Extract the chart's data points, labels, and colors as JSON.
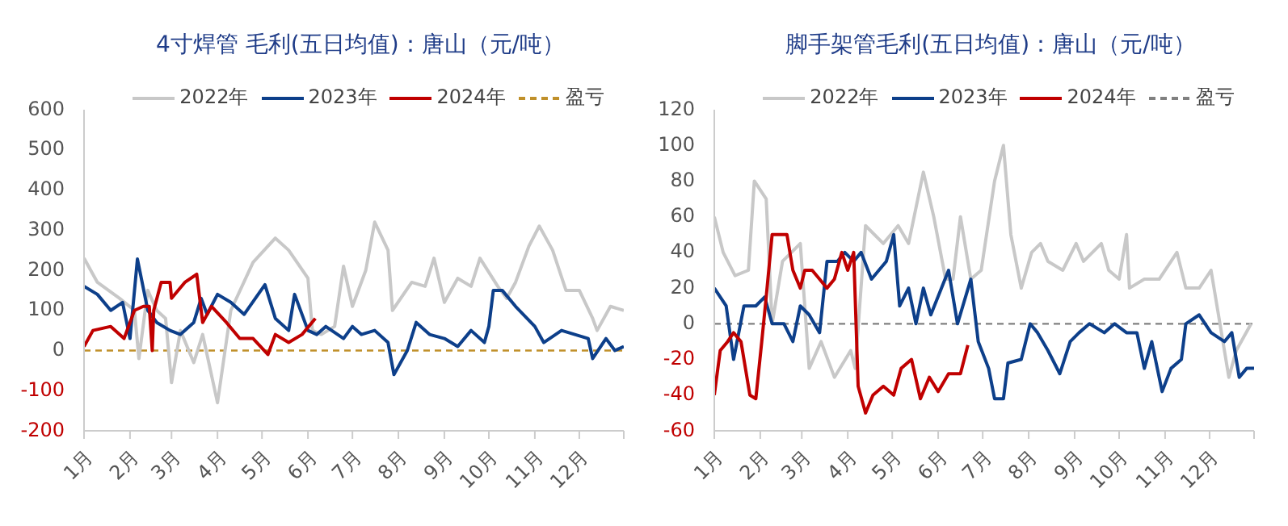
{
  "chart_data": [
    {
      "type": "line",
      "title": "4寸焊管 毛利(五日均值)：唐山（元/吨）",
      "legend": "top",
      "xlim": [
        "--01-01",
        "--12-31"
      ],
      "xticks": [
        {
          "value": "--01-01",
          "label": "1月"
        },
        {
          "value": "--02-01",
          "label": "2月"
        },
        {
          "value": "--03-01",
          "label": "3月"
        },
        {
          "value": "--04-01",
          "label": "4月"
        },
        {
          "value": "--05-01",
          "label": "5月"
        },
        {
          "value": "--06-01",
          "label": "6月"
        },
        {
          "value": "--07-01",
          "label": "7月"
        },
        {
          "value": "--08-01",
          "label": "8月"
        },
        {
          "value": "--09-01",
          "label": "9月"
        },
        {
          "value": "--10-01",
          "label": "10月"
        },
        {
          "value": "--11-01",
          "label": "11月"
        },
        {
          "value": "--12-01",
          "label": "12月"
        },
        {
          "value": "--12-31",
          "label": null
        }
      ],
      "ylim": [
        -200,
        600
      ],
      "yticks": [
        -200,
        -100,
        0,
        100,
        200,
        300,
        400,
        500,
        600
      ],
      "ref_lines": [
        {
          "axis": "y",
          "value": 0,
          "label": "盈亏",
          "color": "#c0902a",
          "line_style": "dashed"
        }
      ],
      "series": [
        {
          "name": "2022年",
          "color": "#c8c8c8",
          "x": [
            "--01-01",
            "--01-10",
            "--01-25",
            "--02-04",
            "--02-07",
            "--02-13",
            "--02-19",
            "--02-25",
            "--03-01",
            "--03-07",
            "--03-16",
            "--03-22",
            "--04-01",
            "--04-10",
            "--04-25",
            "--05-10",
            "--05-19",
            "--06-01",
            "--06-04",
            "--06-10",
            "--06-19",
            "--06-25",
            "--07-01",
            "--07-10",
            "--07-16",
            "--07-25",
            "--07-28",
            "--08-10",
            "--08-19",
            "--08-25",
            "--09-01",
            "--09-10",
            "--09-19",
            "--09-25",
            "--10-07",
            "--10-13",
            "--10-19",
            "--10-28",
            "--11-04",
            "--11-13",
            "--11-22",
            "--12-01",
            "--12-10",
            "--12-13",
            "--12-22",
            "--12-31"
          ],
          "values": [
            230,
            170,
            130,
            100,
            -20,
            150,
            100,
            80,
            -80,
            50,
            -30,
            40,
            -130,
            100,
            220,
            280,
            250,
            180,
            50,
            40,
            60,
            210,
            110,
            200,
            320,
            250,
            100,
            170,
            160,
            230,
            120,
            180,
            160,
            230,
            160,
            130,
            170,
            260,
            310,
            250,
            150,
            150,
            80,
            50,
            110,
            100
          ]
        },
        {
          "name": "2023年",
          "color": "#0d3f8a",
          "x": [
            "--01-01",
            "--01-10",
            "--01-19",
            "--01-27",
            "--02-01",
            "--02-06",
            "--02-13",
            "--02-19",
            "--02-28",
            "--03-07",
            "--03-16",
            "--03-21",
            "--03-25",
            "--04-01",
            "--04-10",
            "--04-19",
            "--05-03",
            "--05-10",
            "--05-19",
            "--05-23",
            "--06-01",
            "--06-07",
            "--06-13",
            "--06-25",
            "--07-01",
            "--07-07",
            "--07-16",
            "--07-25",
            "--07-29",
            "--08-07",
            "--08-13",
            "--08-22",
            "--09-01",
            "--09-10",
            "--09-19",
            "--09-28",
            "--10-01",
            "--10-04",
            "--10-10",
            "--10-19",
            "--11-01",
            "--11-07",
            "--11-19",
            "--11-28",
            "--12-07",
            "--12-10",
            "--12-19",
            "--12-25",
            "--12-31"
          ],
          "values": [
            160,
            140,
            100,
            120,
            30,
            228,
            100,
            70,
            50,
            40,
            70,
            130,
            90,
            140,
            120,
            90,
            164,
            80,
            50,
            140,
            50,
            40,
            60,
            30,
            60,
            40,
            50,
            20,
            -60,
            0,
            70,
            40,
            30,
            10,
            50,
            20,
            60,
            150,
            150,
            110,
            60,
            20,
            50,
            40,
            30,
            -20,
            30,
            0,
            10
          ]
        },
        {
          "name": "2024年",
          "color": "#c00000",
          "x": [
            "--01-01",
            "--01-07",
            "--01-19",
            "--01-28",
            "--02-04",
            "--02-10",
            "--02-14",
            "--02-16",
            "--02-17",
            "--02-22",
            "--02-28",
            "--03-01",
            "--03-10",
            "--03-18",
            "--03-22",
            "--03-28",
            "--04-07",
            "--04-16",
            "--04-25",
            "--05-05",
            "--05-10",
            "--05-19",
            "--05-28",
            "--06-06"
          ],
          "values": [
            10,
            50,
            60,
            30,
            100,
            110,
            110,
            0,
            100,
            170,
            170,
            130,
            170,
            190,
            70,
            110,
            70,
            30,
            30,
            -10,
            40,
            20,
            40,
            80
          ]
        }
      ]
    },
    {
      "type": "line",
      "title": "脚手架管毛利(五日均值)：唐山（元/吨）",
      "legend": "top",
      "xlim": [
        "--01-01",
        "--12-31"
      ],
      "xticks": [
        {
          "value": "--01-01",
          "label": "1月"
        },
        {
          "value": "--02-01",
          "label": "2月"
        },
        {
          "value": "--03-01",
          "label": "3月"
        },
        {
          "value": "--04-01",
          "label": "4月"
        },
        {
          "value": "--05-01",
          "label": "5月"
        },
        {
          "value": "--06-01",
          "label": "6月"
        },
        {
          "value": "--07-01",
          "label": "7月"
        },
        {
          "value": "--08-01",
          "label": "8月"
        },
        {
          "value": "--09-01",
          "label": "9月"
        },
        {
          "value": "--10-01",
          "label": "10月"
        },
        {
          "value": "--11-01",
          "label": "11月"
        },
        {
          "value": "--12-01",
          "label": "12月"
        },
        {
          "value": "--12-31",
          "label": null
        }
      ],
      "ylim": [
        -60,
        120
      ],
      "yticks": [
        -60,
        -40,
        -20,
        0,
        20,
        40,
        60,
        80,
        100,
        120
      ],
      "ref_lines": [
        {
          "axis": "y",
          "value": 0,
          "label": "盈亏",
          "color": "#808080",
          "line_style": "dashed"
        }
      ],
      "series": [
        {
          "name": "2022年",
          "color": "#c8c8c8",
          "x": [
            "--01-01",
            "--01-07",
            "--01-15",
            "--01-24",
            "--01-28",
            "--02-05",
            "--02-09",
            "--02-16",
            "--02-28",
            "--03-06",
            "--03-14",
            "--03-23",
            "--04-03",
            "--04-06",
            "--04-13",
            "--04-25",
            "--05-05",
            "--05-12",
            "--05-22",
            "--05-29",
            "--06-06",
            "--06-11",
            "--06-16",
            "--06-23",
            "--06-30",
            "--07-09",
            "--07-15",
            "--07-20",
            "--07-27",
            "--08-03",
            "--08-09",
            "--08-14",
            "--08-24",
            "--09-02",
            "--09-07",
            "--09-19",
            "--09-24",
            "--10-01",
            "--10-06",
            "--10-08",
            "--10-18",
            "--10-28",
            "--11-09",
            "--11-15",
            "--11-24",
            "--12-02",
            "--12-07",
            "--12-14",
            "--12-19",
            "--12-29"
          ],
          "values": [
            60,
            40,
            27,
            30,
            80,
            70,
            0,
            35,
            45,
            -25,
            -10,
            -30,
            -15,
            -25,
            55,
            45,
            55,
            45,
            85,
            60,
            25,
            25,
            60,
            25,
            30,
            80,
            100,
            50,
            20,
            40,
            45,
            35,
            30,
            45,
            35,
            45,
            30,
            25,
            50,
            20,
            25,
            25,
            40,
            20,
            20,
            30,
            5,
            -30,
            -15,
            0
          ]
        },
        {
          "name": "2023年",
          "color": "#0d3f8a",
          "x": [
            "--01-01",
            "--01-09",
            "--01-14",
            "--01-21",
            "--01-29",
            "--02-04",
            "--02-09",
            "--02-17",
            "--02-23",
            "--02-28",
            "--03-06",
            "--03-13",
            "--03-18",
            "--03-25",
            "--03-30",
            "--04-05",
            "--04-10",
            "--04-17",
            "--04-27",
            "--05-02",
            "--05-06",
            "--05-12",
            "--05-17",
            "--05-22",
            "--05-27",
            "--06-08",
            "--06-14",
            "--06-23",
            "--06-28",
            "--07-05",
            "--07-09",
            "--07-15",
            "--07-18",
            "--07-27",
            "--08-02",
            "--08-07",
            "--08-14",
            "--08-22",
            "--08-29",
            "--09-04",
            "--09-11",
            "--09-21",
            "--09-28",
            "--10-06",
            "--10-13",
            "--10-18",
            "--10-23",
            "--10-30",
            "--11-05",
            "--11-12",
            "--11-15",
            "--11-24",
            "--12-02",
            "--12-11",
            "--12-16",
            "--12-21",
            "--12-26",
            "--12-31"
          ],
          "values": [
            20,
            10,
            -20,
            10,
            10,
            15,
            0,
            0,
            -10,
            10,
            5,
            -5,
            35,
            35,
            40,
            35,
            40,
            25,
            35,
            50,
            10,
            20,
            0,
            20,
            5,
            30,
            0,
            25,
            -10,
            -25,
            -42,
            -42,
            -22,
            -20,
            0,
            -5,
            -15,
            -28,
            -10,
            -5,
            0,
            -5,
            0,
            -5,
            -5,
            -25,
            -10,
            -38,
            -25,
            -20,
            0,
            5,
            -5,
            -10,
            -5,
            -30,
            -25,
            -25
          ]
        },
        {
          "name": "2024年",
          "color": "#c00000",
          "x": [
            "--01-01",
            "--01-05",
            "--01-10",
            "--01-14",
            "--01-19",
            "--01-25",
            "--01-29",
            "--02-02",
            "--02-05",
            "--02-09",
            "--02-16",
            "--02-19",
            "--02-23",
            "--02-28",
            "--03-03",
            "--03-08",
            "--03-13",
            "--03-18",
            "--03-23",
            "--03-28",
            "--04-01",
            "--04-05",
            "--04-08",
            "--04-13",
            "--04-18",
            "--04-25",
            "--05-02",
            "--05-07",
            "--05-14",
            "--05-20",
            "--05-26",
            "--06-01",
            "--06-08",
            "--06-16",
            "--06-21"
          ],
          "values": [
            -40,
            -15,
            -10,
            -5,
            -10,
            -40,
            -42,
            -10,
            15,
            50,
            50,
            50,
            30,
            20,
            30,
            30,
            25,
            20,
            25,
            40,
            30,
            40,
            -35,
            -50,
            -40,
            -35,
            -40,
            -25,
            -20,
            -42,
            -30,
            -38,
            -28,
            -28,
            -12
          ]
        }
      ]
    }
  ]
}
